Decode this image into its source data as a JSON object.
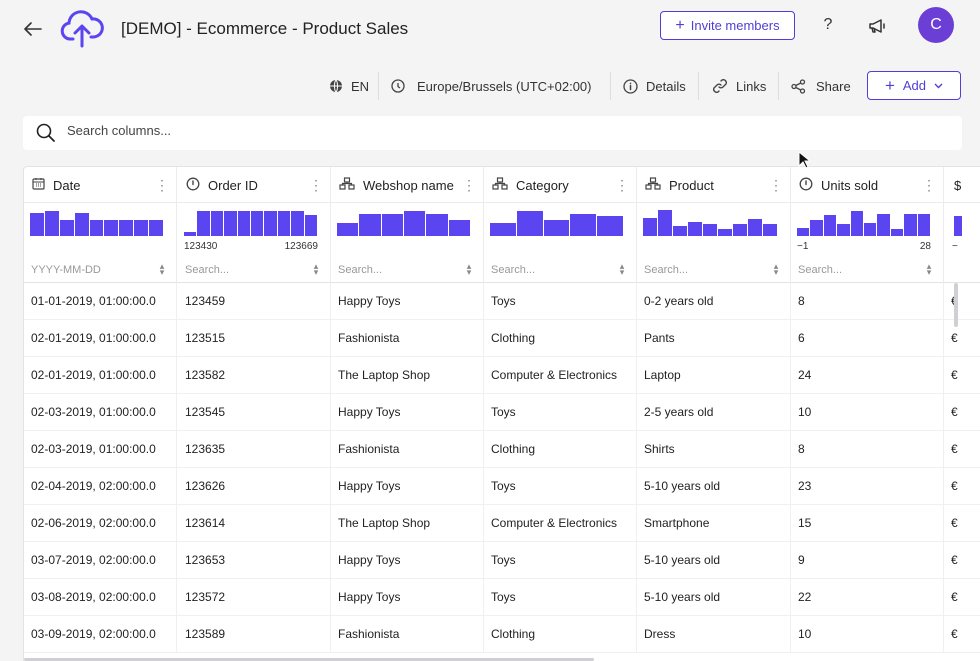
{
  "header": {
    "title": "[DEMO] - Ecommerce - Product Sales",
    "invite_label": "Invite members",
    "help_label": "?",
    "avatar_initial": "C"
  },
  "toolbar": {
    "language": "EN",
    "timezone": "Europe/Brussels (UTC+02:00)",
    "details": "Details",
    "links": "Links",
    "share": "Share",
    "add": "Add"
  },
  "search": {
    "placeholder": "Search columns..."
  },
  "columns": [
    {
      "title": "Date",
      "icon": "calendar-icon",
      "filter_placeholder": "YYYY-MM-DD",
      "histogram": [
        0.9,
        0.95,
        0.6,
        0.9,
        0.6,
        0.6,
        0.6,
        0.6,
        0.6
      ]
    },
    {
      "title": "Order ID",
      "icon": "hash-clock-icon",
      "filter_placeholder": "Search...",
      "range_min": "123430",
      "range_max": "123669",
      "histogram": [
        0.15,
        0.95,
        0.95,
        0.95,
        0.95,
        0.95,
        0.95,
        0.95,
        0.95,
        0.8
      ]
    },
    {
      "title": "Webshop name",
      "icon": "hierarchy-icon",
      "filter_placeholder": "Search...",
      "histogram": [
        0.5,
        0.85,
        0.85,
        0.95,
        0.85,
        0.6
      ]
    },
    {
      "title": "Category",
      "icon": "hierarchy-icon",
      "filter_placeholder": "Search...",
      "histogram": [
        0.5,
        0.95,
        0.6,
        0.85,
        0.75
      ]
    },
    {
      "title": "Product",
      "icon": "hierarchy-icon",
      "filter_placeholder": "Search...",
      "histogram": [
        0.7,
        1.0,
        0.4,
        0.55,
        0.45,
        0.25,
        0.45,
        0.65,
        0.45
      ]
    },
    {
      "title": "Units sold",
      "icon": "hash-clock-icon",
      "filter_placeholder": "Search...",
      "range_min": "−1",
      "range_max": "28",
      "histogram": [
        0.3,
        0.6,
        0.8,
        0.45,
        0.95,
        0.5,
        0.85,
        0.25,
        0.85,
        0.85
      ]
    }
  ],
  "rows": [
    {
      "date": "01-01-2019, 01:00:00.0",
      "order_id": "123459",
      "webshop": "Happy Toys",
      "category": "Toys",
      "product": "0-2 years old",
      "units": "8",
      "price": "€"
    },
    {
      "date": "02-01-2019, 01:00:00.0",
      "order_id": "123515",
      "webshop": "Fashionista",
      "category": "Clothing",
      "product": "Pants",
      "units": "6",
      "price": "€"
    },
    {
      "date": "02-01-2019, 01:00:00.0",
      "order_id": "123582",
      "webshop": "The Laptop Shop",
      "category": "Computer & Electronics",
      "product": "Laptop",
      "units": "24",
      "price": "€"
    },
    {
      "date": "02-03-2019, 01:00:00.0",
      "order_id": "123545",
      "webshop": "Happy Toys",
      "category": "Toys",
      "product": "2-5 years old",
      "units": "10",
      "price": "€"
    },
    {
      "date": "02-03-2019, 01:00:00.0",
      "order_id": "123635",
      "webshop": "Fashionista",
      "category": "Clothing",
      "product": "Shirts",
      "units": "8",
      "price": "€"
    },
    {
      "date": "02-04-2019, 02:00:00.0",
      "order_id": "123626",
      "webshop": "Happy Toys",
      "category": "Toys",
      "product": "5-10 years old",
      "units": "23",
      "price": "€"
    },
    {
      "date": "02-06-2019, 02:00:00.0",
      "order_id": "123614",
      "webshop": "The Laptop Shop",
      "category": "Computer & Electronics",
      "product": "Smartphone",
      "units": "15",
      "price": "€"
    },
    {
      "date": "03-07-2019, 02:00:00.0",
      "order_id": "123653",
      "webshop": "Happy Toys",
      "category": "Toys",
      "product": "5-10 years old",
      "units": "9",
      "price": "€"
    },
    {
      "date": "03-08-2019, 02:00:00.0",
      "order_id": "123572",
      "webshop": "Happy Toys",
      "category": "Toys",
      "product": "5-10 years old",
      "units": "22",
      "price": "€"
    },
    {
      "date": "03-09-2019, 02:00:00.0",
      "order_id": "123589",
      "webshop": "Fashionista",
      "category": "Clothing",
      "product": "Dress",
      "units": "10",
      "price": "€"
    }
  ],
  "colors": {
    "accent": "#4f3fd6",
    "histogram": "#5a45f0",
    "avatar": "#6b3fd6"
  }
}
